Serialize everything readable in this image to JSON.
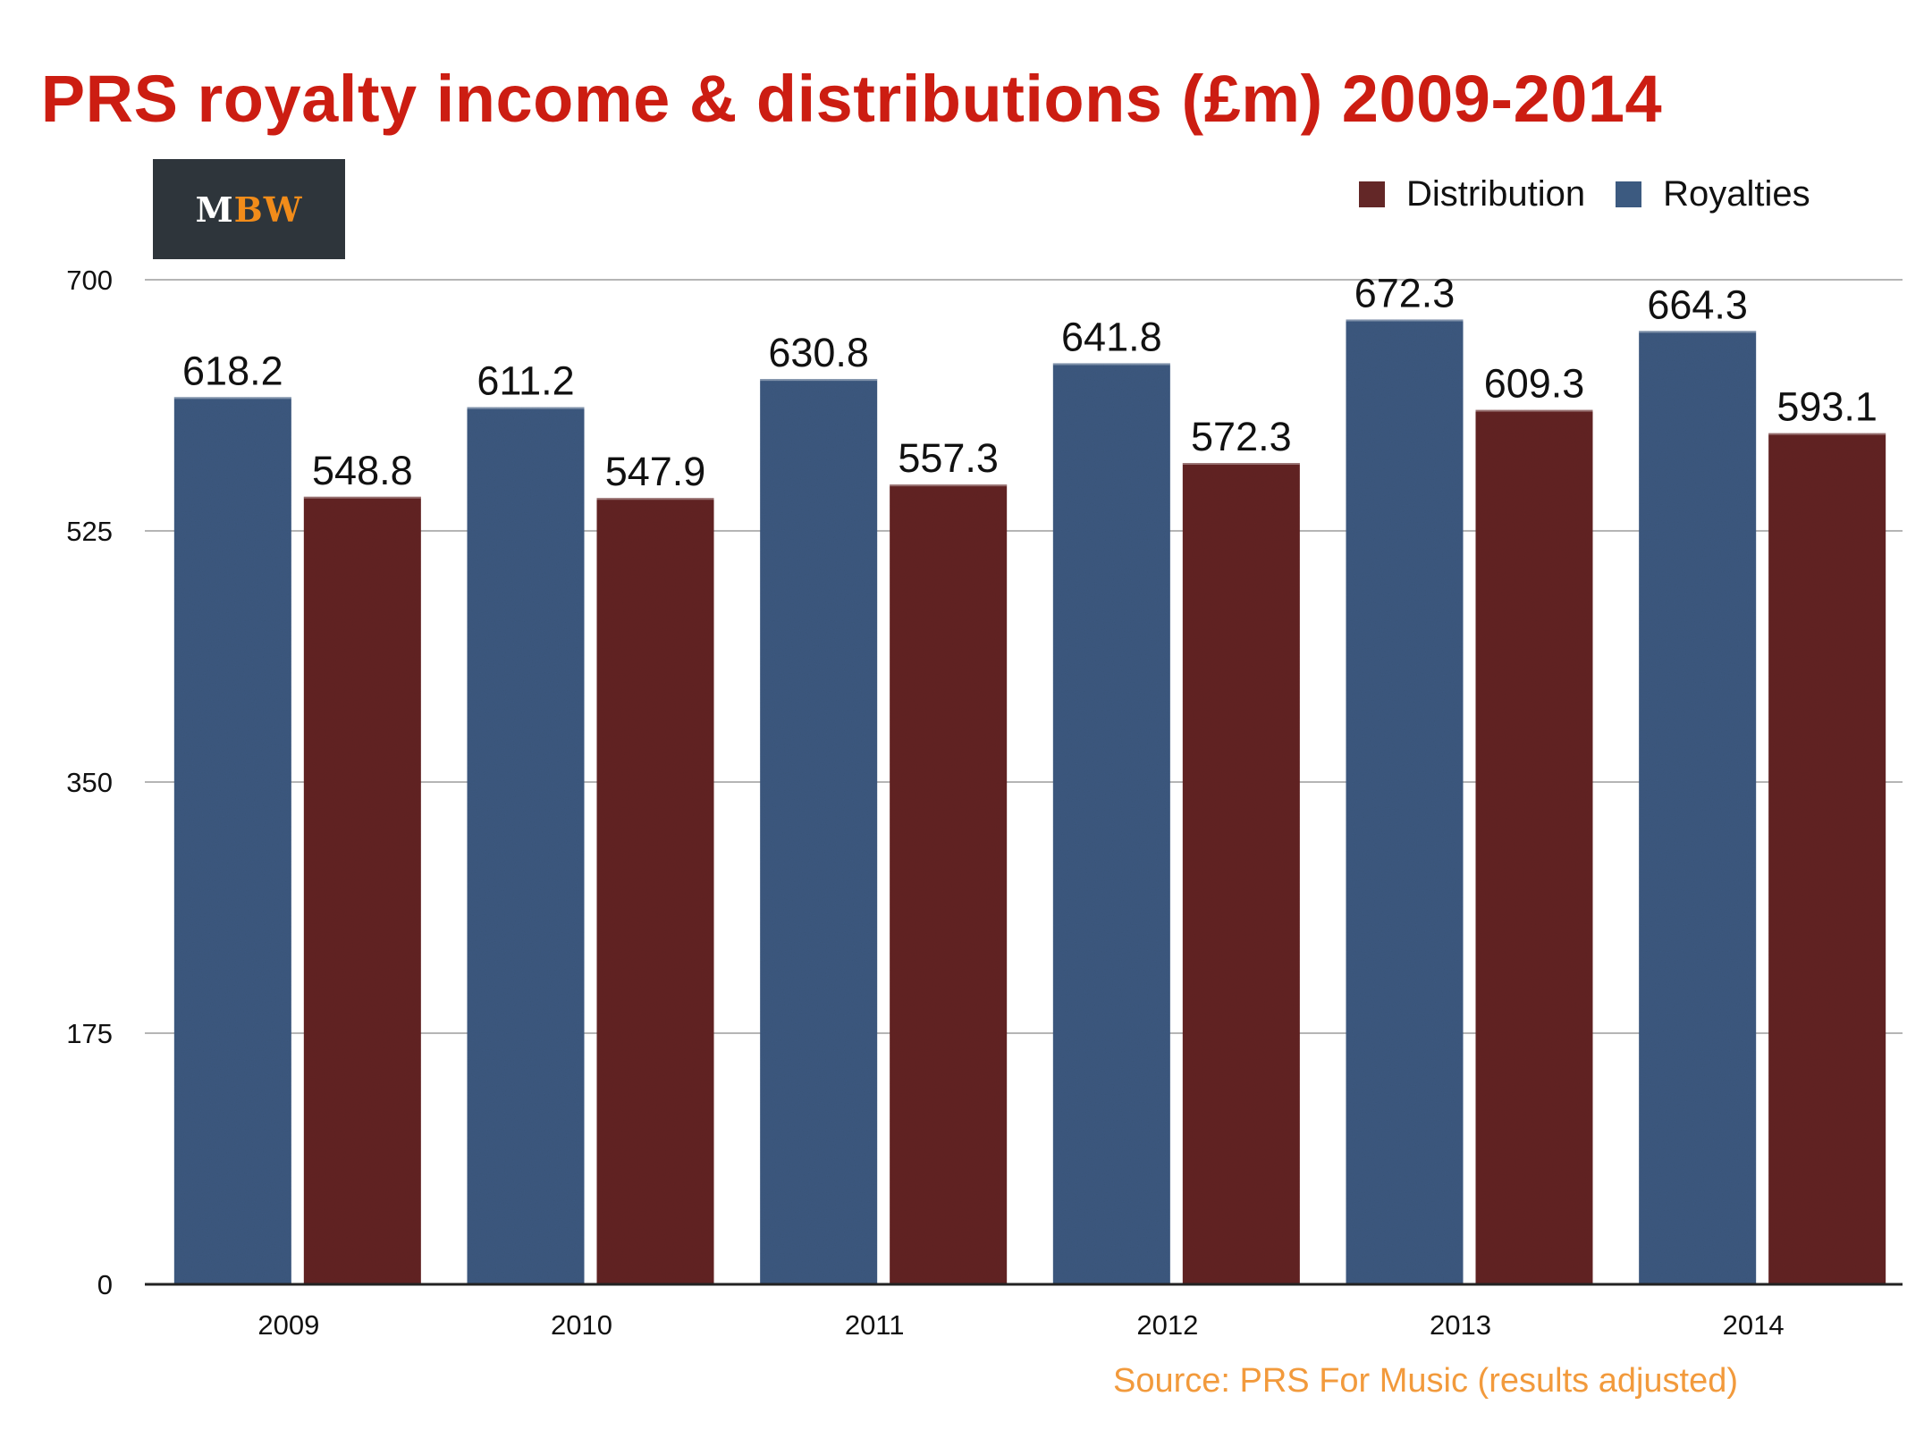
{
  "title": "PRS royalty income & distributions (£m) 2009-2014",
  "logo": {
    "m": "M",
    "bw": "BW"
  },
  "source": "Source: PRS For Music (results adjusted)",
  "colors": {
    "royalties": "#3c5a80",
    "distribution": "#632727",
    "title": "#cc1d12",
    "source": "#f29a3c",
    "logo_bg": "#2e353b",
    "logo_accent": "#f28c1a"
  },
  "chart_data": {
    "type": "bar",
    "title": "PRS royalty income & distributions (£m) 2009-2014",
    "xlabel": "",
    "ylabel": "",
    "categories": [
      "2009",
      "2010",
      "2011",
      "2012",
      "2013",
      "2014"
    ],
    "series": [
      {
        "name": "Royalties",
        "values": [
          618.2,
          611.2,
          630.8,
          641.8,
          672.3,
          664.3
        ],
        "labels": [
          "618.2",
          "611.2",
          "630.8",
          "641.8",
          "672.3",
          "664.3"
        ]
      },
      {
        "name": "Distribution",
        "values": [
          548.8,
          547.9,
          557.3,
          572.3,
          609.3,
          593.1
        ],
        "labels": [
          "548.8",
          "547.9",
          "557.3",
          "572.3",
          "609.3",
          "593.1"
        ]
      }
    ],
    "ylim": [
      0,
      700
    ],
    "yticks": [
      0,
      175,
      350,
      525,
      700
    ],
    "ytick_labels": [
      "0",
      "175",
      "350",
      "525",
      "700"
    ],
    "legend": {
      "position": "top-right",
      "order": [
        "Distribution",
        "Royalties"
      ]
    },
    "grid": true
  }
}
